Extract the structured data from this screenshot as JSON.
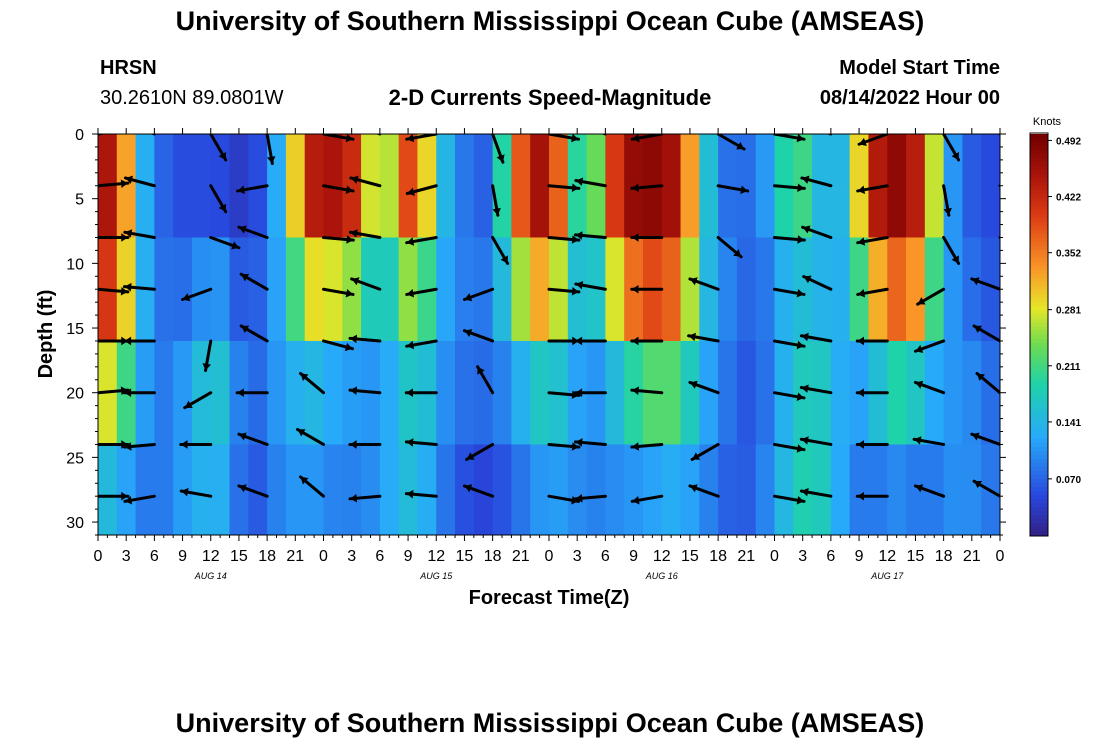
{
  "title": "University of Southern Mississippi Ocean Cube (AMSEAS)",
  "footer_title": "University of Southern Mississippi Ocean Cube (AMSEAS)",
  "station": {
    "name": "HRSN",
    "coords": "30.2610N  89.0801W"
  },
  "subtitle": "2-D Currents Speed-Magnitude",
  "model_start": {
    "label": "Model Start Time",
    "value": "08/14/2022 Hour 00"
  },
  "chart_data": {
    "type": "heatmap",
    "title": "2-D Currents Speed-Magnitude",
    "xlabel": "Forecast Time(Z)",
    "ylabel": "Depth (ft)",
    "x_range_hours": [
      0,
      96
    ],
    "y_range_ft": [
      0,
      31
    ],
    "x_tick_labels": [
      "0",
      "3",
      "6",
      "9",
      "12",
      "15",
      "18",
      "21",
      "0",
      "3",
      "6",
      "9",
      "12",
      "15",
      "18",
      "21",
      "0",
      "3",
      "6",
      "9",
      "12",
      "15",
      "18",
      "21",
      "0",
      "3",
      "6",
      "9",
      "12",
      "15",
      "18",
      "21",
      "0"
    ],
    "y_ticks": [
      0,
      5,
      10,
      15,
      20,
      25,
      30
    ],
    "day_labels": [
      {
        "label": "AUG 14",
        "hour": 12
      },
      {
        "label": "AUG 15",
        "hour": 36
      },
      {
        "label": "AUG 16",
        "hour": 60
      },
      {
        "label": "AUG 17",
        "hour": 84
      }
    ],
    "colorbar": {
      "unit": "Knots",
      "min": 0.0,
      "max": 0.5,
      "ticks": [
        0.492,
        0.422,
        0.352,
        0.281,
        0.211,
        0.141,
        0.07
      ],
      "tick_labels": [
        "0.492",
        "0.422",
        "0.352",
        "0.281",
        "0.211",
        "0.141",
        "0.070"
      ]
    },
    "speed_field": {
      "depths_ft": [
        0,
        8,
        16,
        24,
        31
      ],
      "hours": [
        0,
        2,
        4,
        6,
        8,
        10,
        12,
        14,
        16,
        18,
        20,
        22,
        24,
        26,
        28,
        30,
        32,
        34,
        36,
        38,
        40,
        42,
        44,
        46,
        48,
        50,
        52,
        54,
        56,
        58,
        60,
        62,
        64,
        66,
        68,
        70,
        72,
        74,
        76,
        78,
        80,
        82,
        84,
        86,
        88,
        90,
        92,
        94,
        96
      ],
      "values": [
        [
          0.42,
          0.48,
          0.18,
          0.08,
          0.06,
          0.05,
          0.06,
          0.04,
          0.03,
          0.07,
          0.2,
          0.47,
          0.49,
          0.49,
          0.44,
          0.18,
          0.42,
          0.45,
          0.2,
          0.1,
          0.07,
          0.05,
          0.36,
          0.46,
          0.49,
          0.3,
          0.12,
          0.4,
          0.48,
          0.49,
          0.49,
          0.46,
          0.24,
          0.08,
          0.06,
          0.07,
          0.16,
          0.3,
          0.22,
          0.1,
          0.2,
          0.44,
          0.49,
          0.49,
          0.42,
          0.15,
          0.07,
          0.05,
          0.05
        ],
        [
          0.42,
          0.47,
          0.18,
          0.09,
          0.06,
          0.05,
          0.06,
          0.05,
          0.03,
          0.09,
          0.15,
          0.38,
          0.42,
          0.4,
          0.35,
          0.14,
          0.33,
          0.36,
          0.17,
          0.1,
          0.08,
          0.08,
          0.28,
          0.42,
          0.45,
          0.25,
          0.12,
          0.3,
          0.44,
          0.47,
          0.46,
          0.42,
          0.2,
          0.1,
          0.09,
          0.1,
          0.12,
          0.18,
          0.14,
          0.12,
          0.16,
          0.38,
          0.46,
          0.46,
          0.38,
          0.14,
          0.08,
          0.06,
          0.05
        ],
        [
          0.36,
          0.38,
          0.16,
          0.1,
          0.08,
          0.13,
          0.18,
          0.14,
          0.04,
          0.12,
          0.12,
          0.2,
          0.16,
          0.14,
          0.12,
          0.1,
          0.14,
          0.18,
          0.12,
          0.1,
          0.09,
          0.1,
          0.14,
          0.2,
          0.22,
          0.16,
          0.1,
          0.14,
          0.24,
          0.3,
          0.33,
          0.28,
          0.16,
          0.12,
          0.08,
          0.03,
          0.1,
          0.14,
          0.16,
          0.14,
          0.12,
          0.18,
          0.26,
          0.3,
          0.2,
          0.12,
          0.1,
          0.08,
          0.06
        ],
        [
          0.2,
          0.18,
          0.12,
          0.08,
          0.1,
          0.14,
          0.16,
          0.15,
          0.05,
          0.1,
          0.1,
          0.12,
          0.1,
          0.1,
          0.1,
          0.12,
          0.15,
          0.2,
          0.12,
          0.08,
          0.06,
          0.06,
          0.08,
          0.12,
          0.14,
          0.12,
          0.1,
          0.1,
          0.12,
          0.12,
          0.14,
          0.14,
          0.12,
          0.08,
          0.06,
          0.08,
          0.12,
          0.18,
          0.22,
          0.16,
          0.1,
          0.08,
          0.1,
          0.1,
          0.08,
          0.1,
          0.12,
          0.1,
          0.08
        ],
        [
          0.12,
          0.1,
          0.08,
          0.08,
          0.1,
          0.12,
          0.12,
          0.1,
          0.03,
          0.08,
          0.1,
          0.12,
          0.1,
          0.09,
          0.09,
          0.1,
          0.14,
          0.12,
          0.08,
          0.06,
          0.03,
          0.04,
          0.06,
          0.08,
          0.1,
          0.1,
          0.09,
          0.09,
          0.1,
          0.1,
          0.12,
          0.12,
          0.1,
          0.08,
          0.06,
          0.07,
          0.12,
          0.16,
          0.18,
          0.14,
          0.1,
          0.08,
          0.1,
          0.1,
          0.08,
          0.1,
          0.1,
          0.09,
          0.08
        ]
      ]
    },
    "vector_depths_ft": [
      0,
      4,
      8,
      12,
      16,
      20,
      24,
      28
    ],
    "vector_hours": [
      0,
      6,
      12,
      18,
      24,
      30,
      36,
      42,
      48,
      54,
      60,
      66,
      72,
      78,
      84,
      90,
      96
    ],
    "vector_angles_deg": [
      [
        -10,
        200,
        60,
        80,
        10,
        200,
        170,
        70,
        10,
        200,
        170,
        30,
        10,
        200,
        160,
        60,
        30
      ],
      [
        -5,
        195,
        60,
        170,
        10,
        195,
        165,
        80,
        5,
        190,
        175,
        10,
        5,
        195,
        170,
        80,
        20
      ],
      [
        0,
        190,
        20,
        200,
        5,
        190,
        170,
        60,
        5,
        185,
        180,
        40,
        5,
        200,
        170,
        60,
        15
      ],
      [
        5,
        185,
        160,
        210,
        10,
        200,
        170,
        160,
        5,
        190,
        180,
        200,
        10,
        205,
        170,
        150,
        200
      ],
      [
        0,
        180,
        100,
        210,
        15,
        185,
        170,
        200,
        0,
        180,
        180,
        190,
        10,
        190,
        180,
        160,
        210
      ],
      [
        -5,
        180,
        150,
        180,
        220,
        185,
        180,
        240,
        5,
        180,
        185,
        200,
        10,
        190,
        180,
        200,
        220
      ],
      [
        0,
        175,
        180,
        200,
        210,
        180,
        185,
        150,
        5,
        185,
        175,
        150,
        10,
        190,
        180,
        190,
        200
      ],
      [
        0,
        170,
        190,
        200,
        220,
        175,
        185,
        200,
        10,
        175,
        170,
        200,
        10,
        190,
        180,
        200,
        210
      ]
    ]
  }
}
